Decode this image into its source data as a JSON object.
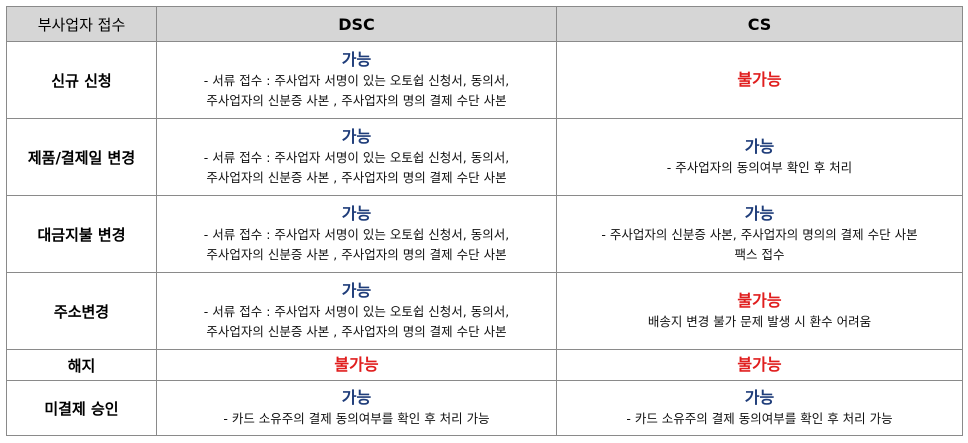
{
  "header": {
    "corner": "부사업자 접수",
    "dsc": "DSC",
    "cs": "CS"
  },
  "colors": {
    "possible": "#1f3d7a",
    "impossible": "#e01e1e",
    "header_bg": "#d6d6d6"
  },
  "rows": [
    {
      "label": "신규 신청",
      "dsc": {
        "status": "가능",
        "line1": "- 서류 접수 : 주사업자 서명이 있는 오토쉽 신청서, 동의서,",
        "line2": "주사업자의 신분증 사본 , 주사업자의 명의 결제 수단 사본"
      },
      "cs": {
        "status": "불가능"
      }
    },
    {
      "label": "제품/결제일 변경",
      "dsc": {
        "status": "가능",
        "line1": "- 서류 접수 : 주사업자 서명이 있는 오토쉽 신청서, 동의서,",
        "line2": "주사업자의 신분증 사본 , 주사업자의 명의 결제 수단 사본"
      },
      "cs": {
        "status": "가능",
        "line1": "- 주사업자의 동의여부 확인 후 처리"
      }
    },
    {
      "label": "대금지불 변경",
      "dsc": {
        "status": "가능",
        "line1": "- 서류 접수 : 주사업자 서명이 있는 오토쉽 신청서, 동의서,",
        "line2": "주사업자의 신분증 사본 , 주사업자의 명의 결제 수단 사본"
      },
      "cs": {
        "status": "가능",
        "line1": "- 주사업자의 신분증 사본, 주사업자의 명의의 결제 수단 사본",
        "line2": "팩스 접수"
      }
    },
    {
      "label": "주소변경",
      "dsc": {
        "status": "가능",
        "line1": "- 서류 접수 : 주사업자 서명이 있는 오토쉽 신청서, 동의서,",
        "line2": "주사업자의 신분증 사본 , 주사업자의 명의 결제 수단 사본"
      },
      "cs": {
        "status": "불가능",
        "line1": "배송지 변경 불가 문제 발생 시 환수 어려움"
      }
    },
    {
      "label": "해지",
      "dsc": {
        "status": "불가능"
      },
      "cs": {
        "status": "불가능"
      }
    },
    {
      "label": "미결제 승인",
      "dsc": {
        "status": "가능",
        "line1": "- 카드 소유주의 결제 동의여부를 확인 후 처리 가능"
      },
      "cs": {
        "status": "가능",
        "line1": "- 카드 소유주의 결제 동의여부를 확인 후 처리 가능"
      }
    }
  ]
}
